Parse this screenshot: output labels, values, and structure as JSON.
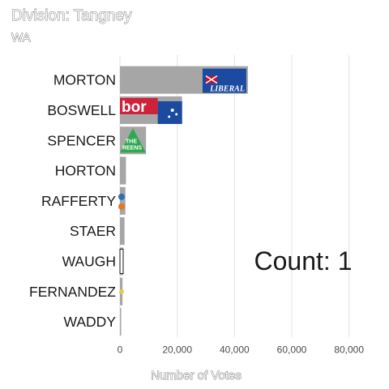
{
  "chart_data": {
    "type": "bar",
    "orientation": "horizontal",
    "title": "Division: Tangney",
    "subtitle": "WA",
    "xlabel": "Number of Votes",
    "ylabel": "",
    "xlim": [
      0,
      90000
    ],
    "xticks": [
      0,
      20000,
      40000,
      60000,
      80000
    ],
    "xtick_labels": [
      "0",
      "20,000",
      "40,000",
      "60,000",
      "80,000"
    ],
    "grid": "vertical",
    "categories": [
      "MORTON",
      "BOSWELL",
      "SPENCER",
      "HORTON",
      "RAFFERTY",
      "STAER",
      "WAUGH",
      "FERNANDEZ",
      "WADDY"
    ],
    "values": [
      44700,
      21700,
      9100,
      2100,
      1900,
      1600,
      1200,
      900,
      300
    ],
    "bar_color": "#a6a6a6",
    "logos": [
      {
        "category": "MORTON",
        "text": "LIBERAL",
        "bg": "#1b4aa0",
        "accent": "#ffffff"
      },
      {
        "category": "BOSWELL",
        "text": "bor",
        "bg": "#d0213a",
        "accent": "#1b4aa0"
      },
      {
        "category": "SPENCER",
        "text": "THE REENS",
        "bg": "#2fa84f",
        "accent": "#ffffff"
      },
      {
        "category": "RAFFERTY",
        "text": "",
        "bg": "#2f6fb5",
        "accent": "#e07b1f"
      }
    ],
    "annotation": "Count:  1"
  }
}
